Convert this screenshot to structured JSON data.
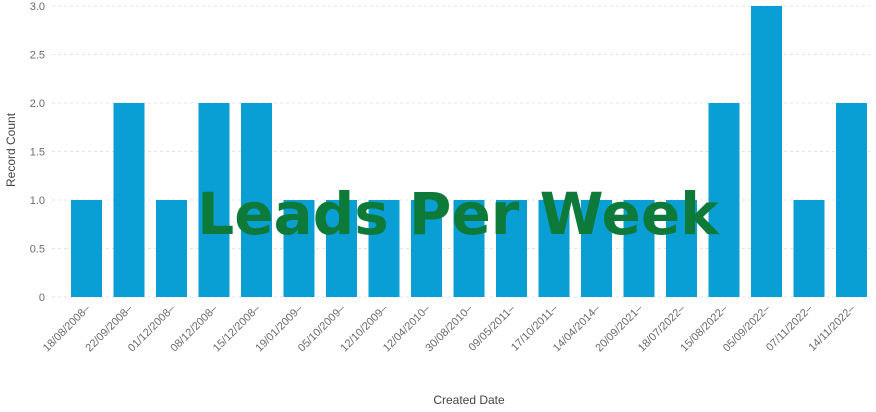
{
  "chart_data": {
    "type": "bar",
    "title": "Leads Per Week",
    "xlabel": "Created Date",
    "ylabel": "Record Count",
    "ylim": [
      0,
      3.0
    ],
    "yticks": [
      "0",
      "0.5",
      "1.0",
      "1.5",
      "2.0",
      "2.5",
      "3.0"
    ],
    "categories": [
      "18/08/2008–",
      "22/09/2008–",
      "01/12/2008–",
      "08/12/2008–",
      "15/12/2008–",
      "19/01/2009–",
      "05/10/2009–",
      "12/10/2009–",
      "12/04/2010–",
      "30/08/2010–",
      "09/05/2011–",
      "17/10/2011–",
      "14/04/2014–",
      "20/09/2021–",
      "18/07/2022–",
      "15/08/2022–",
      "05/09/2022–",
      "07/11/2022–",
      "14/11/2022–"
    ],
    "values": [
      1,
      2,
      1,
      2,
      2,
      1,
      1,
      1,
      1,
      1,
      1,
      1,
      1,
      1,
      1,
      2,
      3,
      1,
      2
    ],
    "bar_color": "#0a9fd4",
    "title_color": "#0e7a3a",
    "grid": true
  }
}
